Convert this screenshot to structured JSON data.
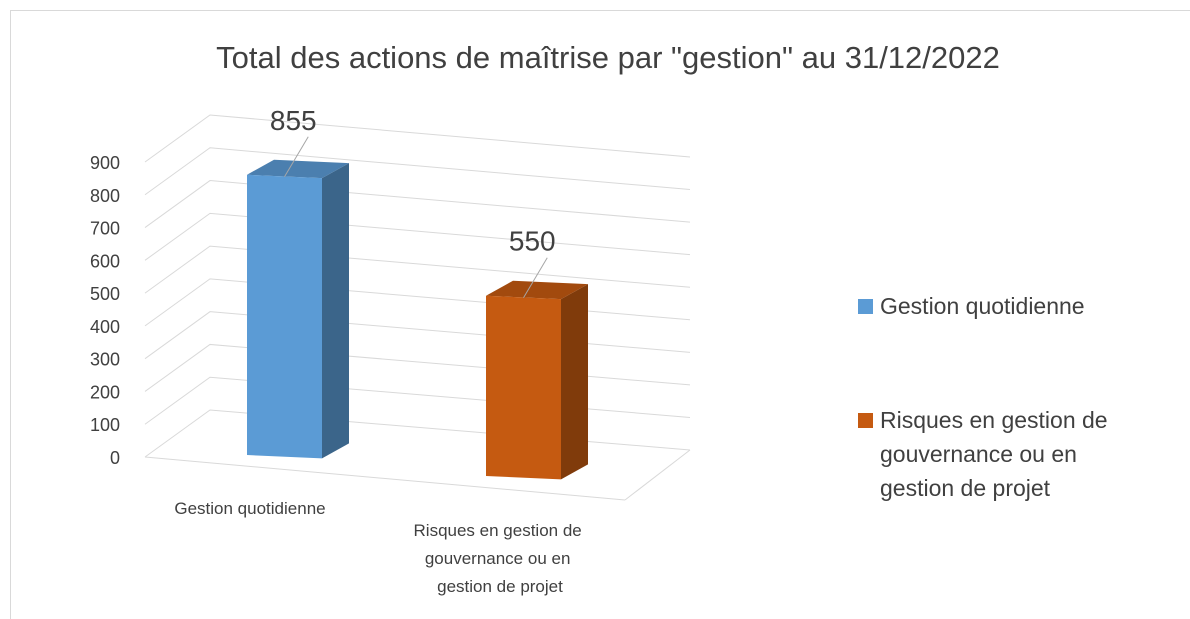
{
  "chart_data": {
    "type": "bar3d",
    "title": "Total des actions de maîtrise par \"gestion\" au 31/12/2022",
    "categories": [
      "Gestion quotidienne",
      "Risques en gestion de gouvernance ou en gestion de projet"
    ],
    "values": [
      855,
      550
    ],
    "colors": [
      "#5b9bd5",
      "#c55a11"
    ],
    "ylim": [
      0,
      900
    ],
    "yticks": [
      0,
      100,
      200,
      300,
      400,
      500,
      600,
      700,
      800,
      900
    ],
    "grid": true,
    "legend": "right"
  }
}
